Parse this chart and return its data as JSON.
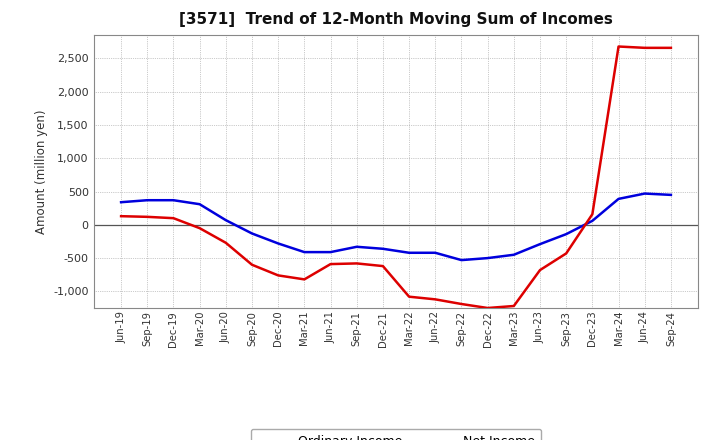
{
  "title": "[3571]  Trend of 12-Month Moving Sum of Incomes",
  "ylabel": "Amount (million yen)",
  "ylim": [
    -1250,
    2850
  ],
  "yticks": [
    -1000,
    -500,
    0,
    500,
    1000,
    1500,
    2000,
    2500
  ],
  "background_color": "#ffffff",
  "plot_bg_color": "#ffffff",
  "ordinary_income_color": "#0000dd",
  "net_income_color": "#dd0000",
  "line_width": 1.8,
  "x_labels": [
    "Jun-19",
    "Sep-19",
    "Dec-19",
    "Mar-20",
    "Jun-20",
    "Sep-20",
    "Dec-20",
    "Mar-21",
    "Jun-21",
    "Sep-21",
    "Dec-21",
    "Mar-22",
    "Jun-22",
    "Sep-22",
    "Dec-22",
    "Mar-23",
    "Jun-23",
    "Sep-23",
    "Dec-23",
    "Mar-24",
    "Jun-24",
    "Sep-24"
  ],
  "ordinary_income": [
    340,
    370,
    370,
    310,
    70,
    -130,
    -280,
    -410,
    -410,
    -330,
    -360,
    -420,
    -420,
    -530,
    -500,
    -450,
    -290,
    -140,
    60,
    390,
    470,
    450
  ],
  "net_income": [
    130,
    120,
    100,
    -50,
    -270,
    -600,
    -760,
    -820,
    -590,
    -580,
    -620,
    -1080,
    -1120,
    -1190,
    -1250,
    -1220,
    -680,
    -430,
    160,
    2680,
    2660,
    2660
  ]
}
